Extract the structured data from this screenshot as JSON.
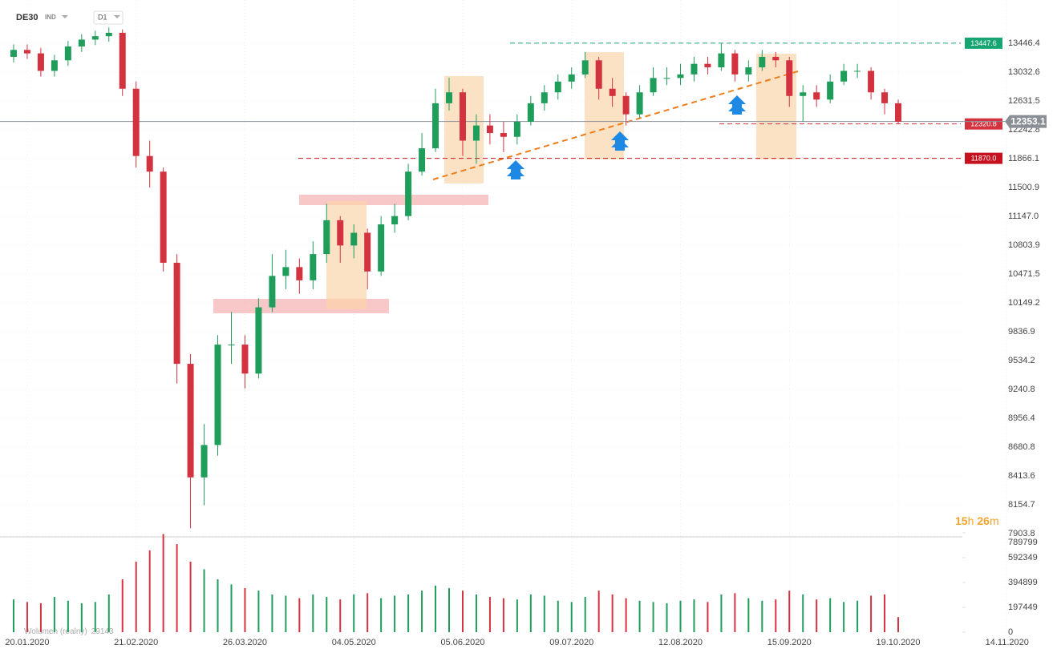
{
  "chart_data": {
    "type": "candlestick",
    "symbol": "DE30",
    "market": "IND",
    "interval": "D1",
    "x": [
      2,
      5,
      8,
      11,
      14,
      17,
      20,
      23,
      26,
      29,
      32,
      35,
      38,
      41,
      44,
      47,
      50,
      53,
      56,
      59,
      62,
      65,
      68,
      71,
      74,
      77,
      80,
      83,
      86,
      89,
      92,
      95,
      98,
      101,
      104,
      107,
      110,
      113,
      116,
      119,
      122,
      125,
      128,
      131,
      134,
      137,
      140,
      143,
      146,
      149,
      152,
      155,
      158,
      161,
      164,
      167,
      170,
      173,
      176,
      179,
      182,
      185,
      188,
      191,
      194,
      197
    ],
    "open": [
      13250,
      13350,
      13300,
      13050,
      13200,
      13400,
      13500,
      13550,
      13600,
      12800,
      11900,
      11700,
      10600,
      9500,
      8400,
      8700,
      9700,
      9700,
      9400,
      10100,
      10450,
      10550,
      10400,
      10700,
      11100,
      10800,
      10950,
      10500,
      11050,
      11150,
      11700,
      12000,
      12600,
      12750,
      12100,
      12300,
      12200,
      12150,
      12350,
      12600,
      12750,
      12900,
      13000,
      13200,
      12800,
      12700,
      12450,
      12750,
      12950,
      12950,
      13000,
      13150,
      13100,
      13300,
      13000,
      13100,
      13250,
      13200,
      12700,
      12750,
      12650,
      12900,
      13050,
      13050,
      12750,
      12600
    ],
    "high": [
      13430,
      13430,
      13380,
      13280,
      13480,
      13580,
      13630,
      13680,
      13650,
      12900,
      12100,
      11750,
      10700,
      9600,
      8900,
      9800,
      10050,
      9800,
      10200,
      10700,
      10750,
      10650,
      10850,
      11300,
      11150,
      11050,
      11000,
      11150,
      11300,
      11800,
      12200,
      12800,
      12950,
      12800,
      12450,
      12450,
      12350,
      12450,
      12700,
      12850,
      13000,
      13100,
      13320,
      13250,
      12950,
      12750,
      12850,
      13100,
      13100,
      13150,
      13250,
      13250,
      13440,
      13350,
      13200,
      13350,
      13320,
      13250,
      12850,
      12850,
      13000,
      13150,
      13150,
      13100,
      12800,
      12650
    ],
    "low": [
      13170,
      13220,
      12970,
      12970,
      13120,
      13320,
      13420,
      13470,
      12700,
      11750,
      11500,
      10500,
      9300,
      7950,
      8150,
      8600,
      9500,
      9250,
      9350,
      10050,
      10300,
      10250,
      10300,
      10600,
      10600,
      10650,
      10300,
      10450,
      10950,
      11100,
      11650,
      11950,
      12500,
      11900,
      11800,
      12050,
      11950,
      12050,
      12300,
      12500,
      12650,
      12800,
      12950,
      12650,
      12550,
      12300,
      12400,
      12700,
      12850,
      12850,
      12900,
      13000,
      13050,
      12900,
      12900,
      13050,
      13100,
      12550,
      12350,
      12550,
      12600,
      12850,
      12950,
      12650,
      12450,
      12320
    ],
    "close": [
      13350,
      13300,
      13050,
      13200,
      13400,
      13500,
      13550,
      13600,
      12800,
      11900,
      11700,
      10600,
      9500,
      8400,
      8700,
      9700,
      9700,
      9400,
      10100,
      10450,
      10550,
      10400,
      10700,
      11100,
      10800,
      10950,
      10500,
      11050,
      11150,
      11700,
      12000,
      12600,
      12750,
      12100,
      12300,
      12200,
      12150,
      12350,
      12600,
      12750,
      12900,
      13000,
      13200,
      12800,
      12700,
      12450,
      12750,
      12950,
      12950,
      13000,
      13150,
      13100,
      13300,
      13000,
      13100,
      13250,
      13200,
      12700,
      12750,
      12650,
      12900,
      13050,
      13050,
      12750,
      12600,
      12350
    ],
    "volume": [
      260000,
      240000,
      230000,
      280000,
      250000,
      230000,
      240000,
      300000,
      420000,
      560000,
      650000,
      780000,
      700000,
      560000,
      500000,
      420000,
      380000,
      350000,
      330000,
      300000,
      290000,
      270000,
      300000,
      280000,
      260000,
      300000,
      310000,
      270000,
      290000,
      300000,
      330000,
      370000,
      350000,
      330000,
      300000,
      280000,
      270000,
      260000,
      300000,
      290000,
      250000,
      240000,
      280000,
      330000,
      300000,
      270000,
      250000,
      240000,
      230000,
      250000,
      260000,
      240000,
      300000,
      310000,
      270000,
      250000,
      260000,
      330000,
      300000,
      260000,
      270000,
      240000,
      250000,
      290000,
      300000,
      120000
    ],
    "up_color": "#1f9d5b",
    "down_color": "#d3323f",
    "xlim": [
      -1,
      232
    ],
    "xticks": [
      {
        "value": 5,
        "label": "20.01.2020"
      },
      {
        "value": 29,
        "label": "21.02.2020"
      },
      {
        "value": 53,
        "label": "26.03.2020"
      },
      {
        "value": 77,
        "label": "04.05.2020"
      },
      {
        "value": 101,
        "label": "05.06.2020"
      },
      {
        "value": 125,
        "label": "09.07.2020"
      },
      {
        "value": 149,
        "label": "12.08.2020"
      },
      {
        "value": 173,
        "label": "15.09.2020"
      },
      {
        "value": 197,
        "label": "19.10.2020"
      },
      {
        "value": 221,
        "label": "14.11.2020"
      }
    ],
    "ylim": [
      7876,
      14092
    ],
    "log_y": true,
    "grid": true,
    "yticks": [
      13446.4,
      13032.6,
      12631.5,
      12242.8,
      11866.1,
      11500.9,
      {
        "value": 11147,
        "label": "11147.0"
      },
      10803.9,
      10471.5,
      10149.2,
      9836.9,
      9534.2,
      9240.8,
      8956.4,
      8680.8,
      8413.6,
      8154.7,
      7903.8
    ],
    "y2lim": [
      0,
      789799
    ],
    "y2ticks": [
      789799,
      592349,
      394899,
      197449,
      0
    ],
    "levels": [
      {
        "value": 13447.6,
        "color": "#17a673"
      },
      {
        "value": 12320.8,
        "color": "#d3323f"
      },
      {
        "value": 11870,
        "label": "11870.0",
        "color": "#c6121f"
      }
    ],
    "last_price": {
      "value": 12353.1,
      "color": "#8a8f96"
    },
    "volume_legend": {
      "name": "Wolumen (realny)",
      "value": 29143
    },
    "timer": {
      "hours": "15",
      "h": "h",
      "minutes": "26",
      "m": "m"
    }
  }
}
